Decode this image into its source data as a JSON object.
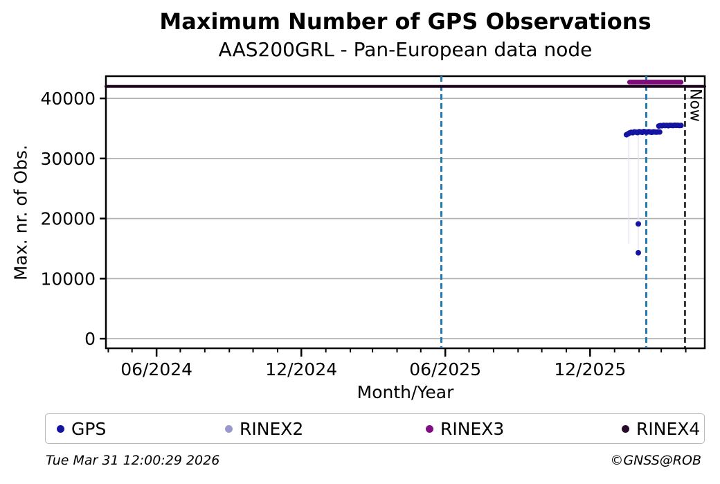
{
  "header": {
    "title": "Maximum Number of GPS Observations",
    "subtitle": "AAS200GRL - Pan-European data node"
  },
  "chart_data": {
    "type": "scatter",
    "title": "Maximum Number of GPS Observations",
    "subtitle": "AAS200GRL - Pan-European data node",
    "xlabel": "Month/Year",
    "ylabel": "Max. nr. of Obs.",
    "x_range": [
      "2024-03-29",
      "2026-04-25"
    ],
    "y_range": [
      -1600,
      43700
    ],
    "grid": true,
    "grid_color": "#b2b2b2",
    "y_ticks": [
      {
        "value": 0,
        "label": "0"
      },
      {
        "value": 10000,
        "label": "10000"
      },
      {
        "value": 20000,
        "label": "20000"
      },
      {
        "value": 30000,
        "label": "30000"
      },
      {
        "value": 40000,
        "label": "40000"
      }
    ],
    "x_major_ticks": [
      {
        "date": "2024-06-01",
        "label": "06/2024"
      },
      {
        "date": "2024-12-01",
        "label": "12/2024"
      },
      {
        "date": "2025-06-01",
        "label": "06/2025"
      },
      {
        "date": "2025-12-01",
        "label": "12/2025"
      }
    ],
    "x_minor_ticks_monthly": true,
    "vlines": [
      {
        "date": "2025-05-27",
        "color": "#1f77b4",
        "style": "dashed",
        "width": 3
      },
      {
        "date": "2026-02-10",
        "color": "#1f77b4",
        "style": "dashed",
        "width": 3
      }
    ],
    "now_marker": {
      "date": "2026-03-31",
      "label": "Now",
      "color": "#000000",
      "style": "dashed",
      "width": 2.4
    },
    "drop_lines": [
      {
        "date": "2026-01-19",
        "from": 34200,
        "to": 15800,
        "color": "#e3e3ef"
      },
      {
        "date": "2026-01-31",
        "from": 34300,
        "to": 13500,
        "color": "#e3e3ef"
      }
    ],
    "series": [
      {
        "name": "RINEX4",
        "color": "#1e051e",
        "type": "line",
        "linewidth": 4,
        "points": [
          [
            "2024-03-29",
            42000
          ],
          [
            "2026-04-25",
            42000
          ]
        ]
      },
      {
        "name": "RINEX3",
        "color": "#7d0c78",
        "type": "line",
        "linewidth": 7,
        "points": [
          [
            "2026-01-20",
            42700
          ],
          [
            "2026-03-26",
            42700
          ]
        ]
      },
      {
        "name": "RINEX2",
        "color": "#9a99ce",
        "type": "scatter",
        "points": []
      },
      {
        "name": "GPS",
        "color": "#1414a0",
        "type": "scatter",
        "dot_radius": 4,
        "points": [
          [
            "2026-01-16",
            33950
          ],
          [
            "2026-01-18",
            34100
          ],
          [
            "2026-01-20",
            34250
          ],
          [
            "2026-01-22",
            34350
          ],
          [
            "2026-01-24",
            34280
          ],
          [
            "2026-01-26",
            34420
          ],
          [
            "2026-01-28",
            34380
          ],
          [
            "2026-01-30",
            34300
          ],
          [
            "2026-02-01",
            34450
          ],
          [
            "2026-02-03",
            34400
          ],
          [
            "2026-02-05",
            34350
          ],
          [
            "2026-02-07",
            34480
          ],
          [
            "2026-02-09",
            34420
          ],
          [
            "2026-02-11",
            34380
          ],
          [
            "2026-02-13",
            34450
          ],
          [
            "2026-02-15",
            34400
          ],
          [
            "2026-02-17",
            34350
          ],
          [
            "2026-02-19",
            34430
          ],
          [
            "2026-02-21",
            34400
          ],
          [
            "2026-02-23",
            34380
          ],
          [
            "2026-02-25",
            34420
          ],
          [
            "2026-02-27",
            34400
          ],
          [
            "2026-02-26",
            35400
          ],
          [
            "2026-02-28",
            35480
          ],
          [
            "2026-03-02",
            35450
          ],
          [
            "2026-03-04",
            35520
          ],
          [
            "2026-03-06",
            35480
          ],
          [
            "2026-03-08",
            35500
          ],
          [
            "2026-03-10",
            35450
          ],
          [
            "2026-03-12",
            35520
          ],
          [
            "2026-03-14",
            35500
          ],
          [
            "2026-03-16",
            35480
          ],
          [
            "2026-03-18",
            35530
          ],
          [
            "2026-03-20",
            35500
          ],
          [
            "2026-03-22",
            35520
          ],
          [
            "2026-03-24",
            35480
          ],
          [
            "2026-03-26",
            35500
          ],
          [
            "2026-01-31",
            19100
          ],
          [
            "2026-01-31",
            14300
          ]
        ]
      }
    ]
  },
  "legend": {
    "items": [
      {
        "label": "GPS",
        "color": "#1414a0"
      },
      {
        "label": "RINEX2",
        "color": "#9a99ce"
      },
      {
        "label": "RINEX3",
        "color": "#830b83"
      },
      {
        "label": "RINEX4",
        "color": "#2a0a2a"
      }
    ]
  },
  "footer": {
    "timestamp": "Tue Mar 31 12:00:29 2026",
    "credit": "©GNSS@ROB"
  }
}
